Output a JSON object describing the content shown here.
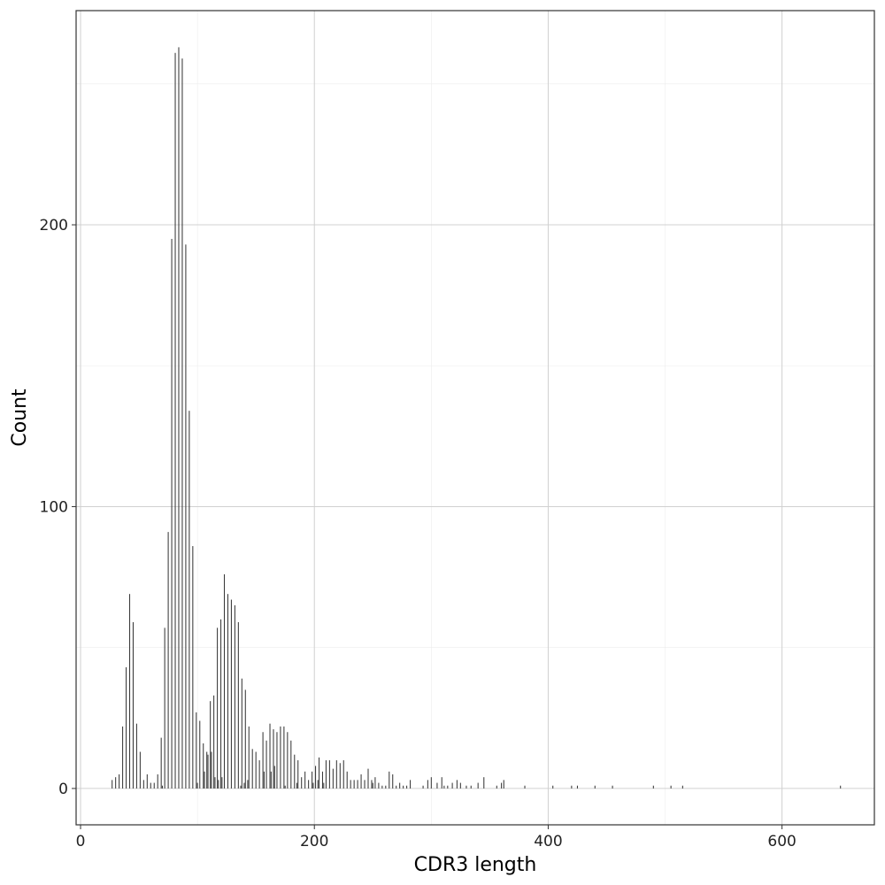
{
  "chart_data": {
    "type": "bar",
    "x_label": "CDR3 length",
    "y_label": "Count",
    "x": [
      27,
      30,
      33,
      36,
      39,
      42,
      45,
      48,
      51,
      54,
      57,
      60,
      63,
      66,
      69,
      70,
      72,
      75,
      78,
      81,
      84,
      87,
      90,
      93,
      96,
      99,
      100,
      102,
      105,
      106,
      108,
      109,
      111,
      112,
      114,
      115,
      117,
      118,
      120,
      121,
      123,
      126,
      129,
      132,
      135,
      137,
      138,
      140,
      141,
      143,
      144,
      147,
      150,
      153,
      156,
      157,
      159,
      162,
      163,
      165,
      166,
      168,
      171,
      174,
      175,
      177,
      180,
      183,
      185,
      186,
      189,
      192,
      195,
      198,
      199,
      201,
      203,
      204,
      207,
      208,
      210,
      213,
      216,
      219,
      222,
      225,
      228,
      231,
      234,
      237,
      240,
      243,
      246,
      249,
      250,
      252,
      255,
      258,
      261,
      264,
      267,
      270,
      273,
      276,
      279,
      282,
      293,
      297,
      300,
      305,
      309,
      311,
      314,
      318,
      322,
      325,
      330,
      334,
      340,
      345,
      356,
      360,
      362,
      380,
      404,
      420,
      425,
      440,
      455,
      490,
      505,
      515,
      650
    ],
    "values": [
      3,
      4,
      5,
      22,
      43,
      69,
      59,
      23,
      13,
      3,
      5,
      2,
      2,
      5,
      18,
      1,
      57,
      91,
      195,
      261,
      263,
      259,
      193,
      134,
      86,
      27,
      2,
      24,
      16,
      6,
      13,
      12,
      31,
      13,
      33,
      4,
      57,
      3,
      60,
      4,
      76,
      69,
      67,
      65,
      59,
      1,
      39,
      2,
      35,
      3,
      22,
      14,
      13,
      10,
      20,
      6,
      17,
      23,
      6,
      21,
      8,
      20,
      22,
      22,
      1,
      20,
      17,
      12,
      2,
      10,
      4,
      6,
      3,
      6,
      2,
      8,
      3,
      11,
      6,
      2,
      10,
      10,
      7,
      10,
      9,
      10,
      6,
      3,
      3,
      3,
      5,
      3,
      7,
      3,
      2,
      4,
      2,
      1,
      1,
      6,
      5,
      1,
      2,
      1,
      1,
      3,
      1,
      3,
      4,
      2,
      4,
      1,
      1,
      2,
      3,
      2,
      1,
      1,
      2,
      4,
      1,
      2,
      3,
      1,
      1,
      1,
      1,
      1,
      1,
      1,
      1,
      1,
      1
    ],
    "color": "#3a3a3a",
    "xlim": [
      -3.8,
      679
    ],
    "ylim": [
      -12.9,
      276
    ],
    "xticks": [
      0,
      200,
      400,
      600
    ],
    "yticks": [
      0,
      100,
      200
    ],
    "x_minor_grid": [
      100,
      300,
      500
    ],
    "y_minor_grid": [
      50,
      150,
      250
    ],
    "grid": true
  }
}
